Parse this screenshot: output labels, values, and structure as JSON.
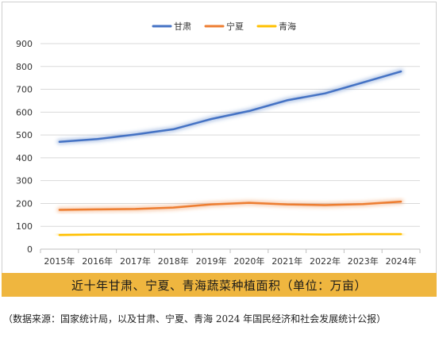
{
  "chart_data": {
    "type": "line",
    "categories": [
      "2015年",
      "2016年",
      "2017年",
      "2018年",
      "2019年",
      "2020年",
      "2021年",
      "2022年",
      "2023年",
      "2024年"
    ],
    "series": [
      {
        "name": "甘肃",
        "color": "#4472c4",
        "values": [
          470,
          482,
          502,
          525,
          570,
          605,
          652,
          682,
          730,
          778
        ]
      },
      {
        "name": "宁夏",
        "color": "#ed7d31",
        "values": [
          172,
          174,
          176,
          182,
          196,
          203,
          196,
          193,
          197,
          208
        ]
      },
      {
        "name": "青海",
        "color": "#ffc000",
        "values": [
          62,
          64,
          64,
          64,
          66,
          66,
          66,
          64,
          66,
          66
        ]
      }
    ],
    "yticks": [
      0,
      100,
      200,
      300,
      400,
      500,
      600,
      700,
      800,
      900
    ],
    "ylim": [
      0,
      900
    ],
    "grid": true,
    "legend": "top-center",
    "caption": "近十年甘肃、宁夏、青海蔬菜种植面积（单位：万亩）"
  },
  "source_note": "（数据来源：国家统计局，以及甘肃、宁夏、青海 2024 年国民经济和社会发展统计公报）"
}
